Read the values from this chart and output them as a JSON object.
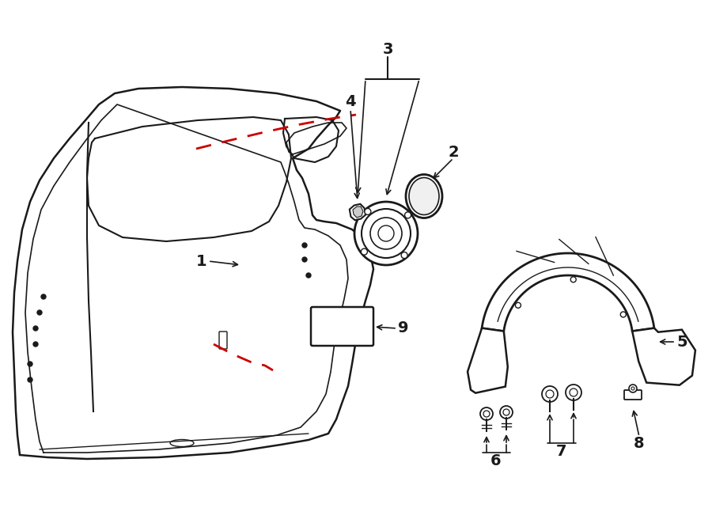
{
  "bg_color": "#ffffff",
  "line_color": "#1a1a1a",
  "red_color": "#cc0000",
  "figsize": [
    9.0,
    6.61
  ],
  "dpi": 100
}
